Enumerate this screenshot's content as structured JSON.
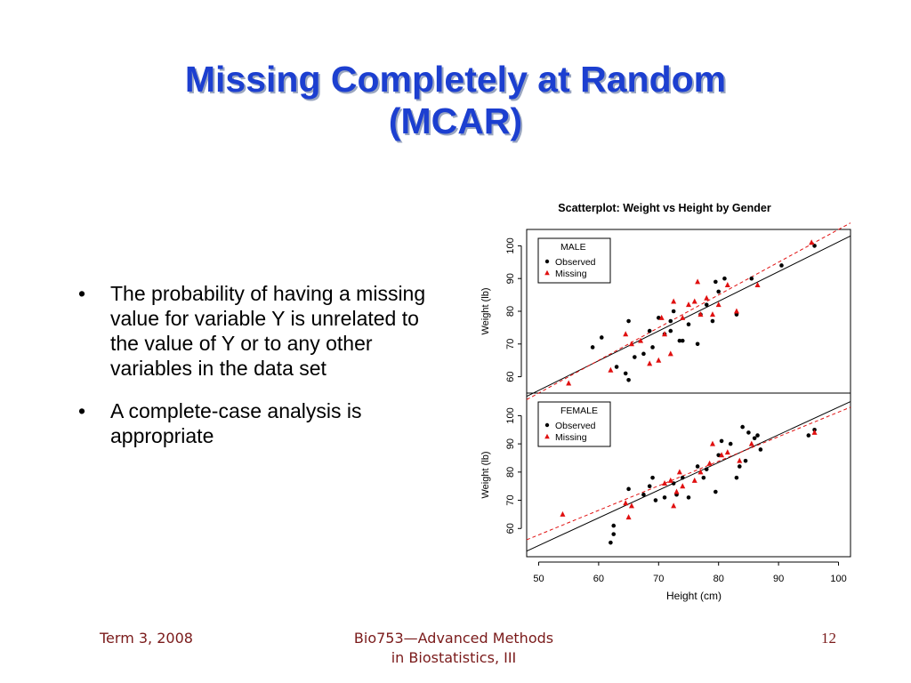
{
  "slide": {
    "title_line1": "Missing Completely at Random",
    "title_line2": "(MCAR)",
    "bullets": [
      "The probability of having a missing value for variable Y is unrelated to the value of Y or to any other variables in the data set",
      "A complete-case analysis is appropriate"
    ],
    "footer_left": "Term 3, 2008",
    "footer_center_line1": "Bio753—Advanced Methods",
    "footer_center_line2": "in Biostatistics, III",
    "page_number": "12"
  },
  "colors": {
    "title": "#1c3fd0",
    "observed": "#000000",
    "missing": "#e01010",
    "footer": "#7a1a1a"
  },
  "chart_data": {
    "type": "scatter",
    "title": "Scatterplot: Weight vs Height by Gender",
    "xlabel": "Height (cm)",
    "ylabel": "Weight (lb)",
    "xlim": [
      48,
      102
    ],
    "x_ticks": [
      50,
      60,
      70,
      80,
      90,
      100
    ],
    "y_ticks": [
      60,
      70,
      80,
      90,
      100
    ],
    "panels": [
      {
        "name": "MALE",
        "ylim": [
          55,
          105
        ],
        "legend": [
          "Observed",
          "Missing"
        ],
        "fit_observed": [
          [
            48,
            54
          ],
          [
            102,
            103
          ]
        ],
        "fit_missing": [
          [
            48,
            53
          ],
          [
            102,
            107
          ]
        ],
        "observed": [
          [
            59,
            69
          ],
          [
            60.5,
            72
          ],
          [
            63,
            63
          ],
          [
            64.5,
            61
          ],
          [
            65,
            59
          ],
          [
            65,
            77
          ],
          [
            66,
            66
          ],
          [
            67.5,
            67
          ],
          [
            68.5,
            74
          ],
          [
            69,
            69
          ],
          [
            70,
            78
          ],
          [
            71,
            73
          ],
          [
            72,
            74
          ],
          [
            72,
            77
          ],
          [
            72.5,
            80
          ],
          [
            73.5,
            71
          ],
          [
            74,
            71
          ],
          [
            75,
            76
          ],
          [
            76.5,
            70
          ],
          [
            77,
            79
          ],
          [
            78,
            82
          ],
          [
            79,
            77
          ],
          [
            79.5,
            89
          ],
          [
            80,
            86
          ],
          [
            81,
            90
          ],
          [
            83,
            79
          ],
          [
            85.5,
            90
          ],
          [
            90.5,
            94
          ],
          [
            96,
            100
          ]
        ],
        "missing": [
          [
            55,
            58
          ],
          [
            62,
            62
          ],
          [
            64.5,
            73
          ],
          [
            65.5,
            70
          ],
          [
            67,
            71
          ],
          [
            68.5,
            64
          ],
          [
            70,
            65
          ],
          [
            70.5,
            78
          ],
          [
            71,
            73
          ],
          [
            72,
            67
          ],
          [
            72.5,
            83
          ],
          [
            74,
            78
          ],
          [
            75,
            82
          ],
          [
            76,
            83
          ],
          [
            76.5,
            89
          ],
          [
            77,
            79
          ],
          [
            78,
            84
          ],
          [
            79,
            79
          ],
          [
            80,
            82
          ],
          [
            81.5,
            88
          ],
          [
            83,
            80
          ],
          [
            86.5,
            88
          ],
          [
            95.5,
            101
          ]
        ]
      },
      {
        "name": "FEMALE",
        "ylim": [
          50,
          108
        ],
        "legend": [
          "Observed",
          "Missing"
        ],
        "fit_observed": [
          [
            48,
            52
          ],
          [
            102,
            105
          ]
        ],
        "fit_missing": [
          [
            48,
            56
          ],
          [
            102,
            103
          ]
        ],
        "observed": [
          [
            62,
            55
          ],
          [
            62.5,
            58
          ],
          [
            62.5,
            61
          ],
          [
            65,
            74
          ],
          [
            67.5,
            72
          ],
          [
            68.5,
            75
          ],
          [
            69,
            78
          ],
          [
            69.5,
            70
          ],
          [
            71,
            71
          ],
          [
            72.5,
            76
          ],
          [
            73,
            72
          ],
          [
            74,
            78
          ],
          [
            75,
            71
          ],
          [
            76.5,
            82
          ],
          [
            77.5,
            78
          ],
          [
            78,
            81
          ],
          [
            79.5,
            73
          ],
          [
            80,
            86
          ],
          [
            80.5,
            91
          ],
          [
            82,
            90
          ],
          [
            83,
            78
          ],
          [
            83.5,
            82
          ],
          [
            84,
            96
          ],
          [
            84.5,
            84
          ],
          [
            85,
            94
          ],
          [
            86,
            92
          ],
          [
            86.5,
            93
          ],
          [
            87,
            88
          ],
          [
            95,
            93
          ],
          [
            96,
            95
          ]
        ],
        "missing": [
          [
            54,
            65
          ],
          [
            64.5,
            69
          ],
          [
            65,
            64
          ],
          [
            65.5,
            68
          ],
          [
            71,
            76
          ],
          [
            72,
            77
          ],
          [
            72.5,
            68
          ],
          [
            73,
            73
          ],
          [
            73.5,
            80
          ],
          [
            74,
            75
          ],
          [
            76,
            77
          ],
          [
            77,
            80
          ],
          [
            78.5,
            83
          ],
          [
            79,
            90
          ],
          [
            80.5,
            86
          ],
          [
            81.5,
            87
          ],
          [
            83.5,
            84
          ],
          [
            85.5,
            90
          ],
          [
            96,
            94
          ]
        ]
      }
    ]
  }
}
